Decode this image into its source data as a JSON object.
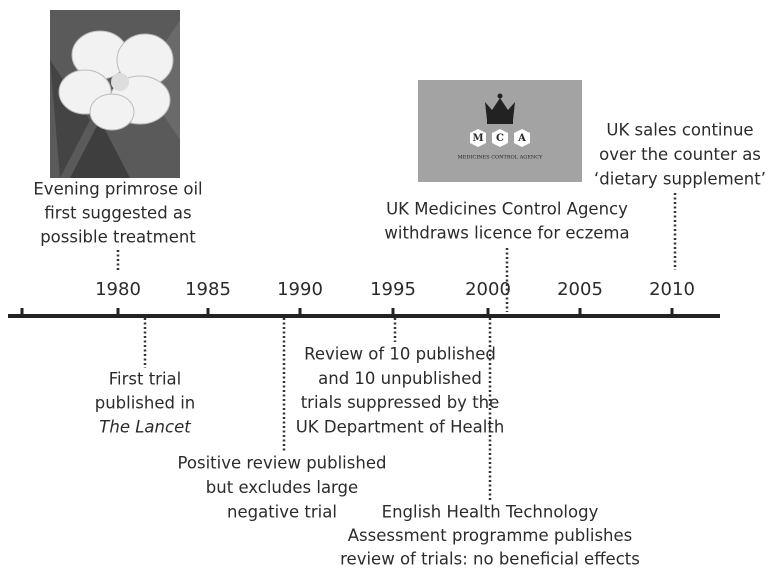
{
  "axis": {
    "labels": [
      "1980",
      "1985",
      "1990",
      "1995",
      "2000",
      "2005",
      "2010"
    ]
  },
  "logo": {
    "letters": [
      "M",
      "C",
      "A"
    ],
    "caption": "MEDICINES CONTROL AGENCY"
  },
  "events": [
    {
      "lines": [
        "Evening primrose oil",
        "first suggested as",
        "possible treatment"
      ]
    },
    {
      "lines": [
        "UK Medicines Control Agency",
        "withdraws licence for eczema"
      ]
    },
    {
      "lines": [
        "UK sales continue",
        "over the counter as",
        "‘dietary supplement’"
      ]
    },
    {
      "lines": [
        "First trial",
        "published in",
        "The Lancet"
      ]
    },
    {
      "lines": [
        "Positive review published",
        "but excludes large",
        "negative trial"
      ]
    },
    {
      "lines": [
        "Review of 10 published",
        "and 10 unpublished",
        "trials suppressed by the",
        "UK Department of Health"
      ]
    },
    {
      "lines": [
        "English Health Technology",
        "Assessment programme publishes",
        "review of trials: no beneficial effects"
      ]
    }
  ]
}
